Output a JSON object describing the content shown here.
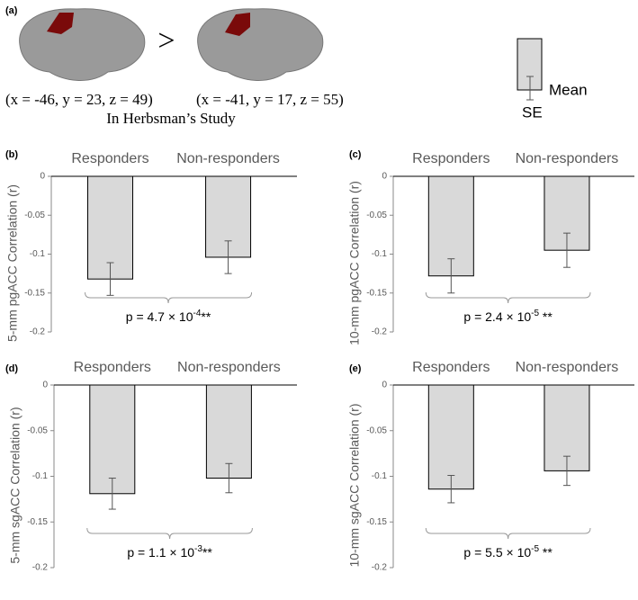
{
  "panel_a": {
    "label": "(a)",
    "comparison": ">",
    "coord_left": "(x = -46, y = 23, z = 49)",
    "coord_right": "(x = -41, y = 17, z = 55)",
    "study": "In Herbsman’s Study",
    "legend_mean": "Mean",
    "legend_se": "SE"
  },
  "chart_data": [
    {
      "type": "bar",
      "panel_label": "(b)",
      "ylabel": "5-mm pgACC Correlation (r)",
      "categories": [
        "Responders",
        "Non-responders"
      ],
      "values": [
        -0.132,
        -0.104
      ],
      "errors": [
        0.021,
        0.021
      ],
      "color": "#d9d9d9",
      "ylim": [
        -0.2,
        0
      ],
      "yticks": [
        0,
        -0.05,
        -0.1,
        -0.15,
        -0.2
      ],
      "annotation": [
        "p = 4.7 × 10",
        "-4",
        "**"
      ]
    },
    {
      "type": "bar",
      "panel_label": "(c)",
      "ylabel": "10-mm pgACC Correlation (r)",
      "categories": [
        "Responders",
        "Non-responders"
      ],
      "values": [
        -0.128,
        -0.095
      ],
      "errors": [
        0.022,
        0.022
      ],
      "color": "#d9d9d9",
      "ylim": [
        -0.2,
        0
      ],
      "yticks": [
        0,
        -0.05,
        -0.1,
        -0.15,
        -0.2
      ],
      "annotation": [
        "p = 2.4 × 10",
        "-5",
        " **"
      ]
    },
    {
      "type": "bar",
      "panel_label": "(d)",
      "ylabel": "5-mm sgACC Correlation (r)",
      "categories": [
        "Responders",
        "Non-responders"
      ],
      "values": [
        -0.119,
        -0.102
      ],
      "errors": [
        0.017,
        0.016
      ],
      "color": "#d9d9d9",
      "ylim": [
        -0.2,
        0
      ],
      "yticks": [
        0,
        -0.05,
        -0.1,
        -0.15,
        -0.2
      ],
      "annotation": [
        "p = 1.1 × 10",
        "-3",
        "**"
      ]
    },
    {
      "type": "bar",
      "panel_label": "(e)",
      "ylabel": "10-mm sgACC Correlation (r)",
      "categories": [
        "Responders",
        "Non-responders"
      ],
      "values": [
        -0.114,
        -0.094
      ],
      "errors": [
        0.015,
        0.016
      ],
      "color": "#d9d9d9",
      "ylim": [
        -0.2,
        0
      ],
      "yticks": [
        0,
        -0.05,
        -0.1,
        -0.15,
        -0.2
      ],
      "annotation": [
        "p = 5.5 × 10",
        "-5",
        " **"
      ]
    }
  ]
}
